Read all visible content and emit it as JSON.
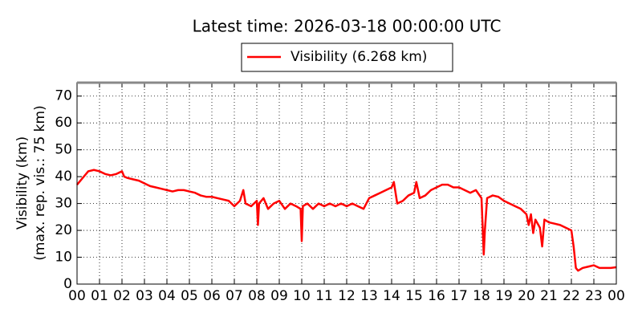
{
  "chart_data": {
    "type": "line",
    "title": "Latest time: 2026-03-18 00:00:00 UTC",
    "ylabel": [
      "Visibility (km)",
      "(max. rep. vis.: 75 km)"
    ],
    "xlim": [
      0,
      24
    ],
    "ylim": [
      0,
      75
    ],
    "yticks": [
      0,
      10,
      20,
      30,
      40,
      50,
      60,
      70
    ],
    "xticks": [
      {
        "value": 0,
        "label": "00"
      },
      {
        "value": 1,
        "label": "01"
      },
      {
        "value": 2,
        "label": "02"
      },
      {
        "value": 3,
        "label": "03"
      },
      {
        "value": 4,
        "label": "04"
      },
      {
        "value": 5,
        "label": "05"
      },
      {
        "value": 6,
        "label": "06"
      },
      {
        "value": 7,
        "label": "07"
      },
      {
        "value": 8,
        "label": "08"
      },
      {
        "value": 9,
        "label": "09"
      },
      10,
      11,
      12,
      13,
      14,
      15,
      16,
      17,
      18,
      19,
      20,
      21,
      22,
      23,
      {
        "value": 24,
        "label": "00"
      }
    ],
    "grid": true,
    "x": [
      0,
      0.1,
      0.3,
      0.5,
      0.75,
      1,
      1.25,
      1.5,
      1.75,
      2,
      2.1,
      2.25,
      2.5,
      2.75,
      3,
      3.25,
      3.5,
      3.75,
      4,
      4.25,
      4.5,
      4.75,
      5,
      5.25,
      5.5,
      5.75,
      6,
      6.25,
      6.5,
      6.75,
      7,
      7.25,
      7.4,
      7.5,
      7.75,
      8,
      8.05,
      8.1,
      8.3,
      8.5,
      8.75,
      9,
      9.25,
      9.5,
      9.75,
      9.95,
      10,
      10.05,
      10.25,
      10.5,
      10.75,
      11,
      11.25,
      11.5,
      11.75,
      12,
      12.25,
      12.5,
      12.75,
      13,
      13.25,
      13.5,
      13.75,
      14,
      14.1,
      14.25,
      14.5,
      14.75,
      15,
      15.1,
      15.25,
      15.5,
      15.75,
      16,
      16.25,
      16.5,
      16.75,
      17,
      17.25,
      17.5,
      17.75,
      18,
      18.1,
      18.15,
      18.25,
      18.5,
      18.75,
      19,
      19.25,
      19.5,
      19.75,
      20,
      20.1,
      20.2,
      20.3,
      20.4,
      20.6,
      20.7,
      20.8,
      21,
      21.25,
      21.5,
      21.75,
      22,
      22.1,
      22.2,
      22.3,
      22.5,
      22.75,
      23,
      23.25,
      23.5,
      23.75,
      24
    ],
    "series": [
      {
        "name": "Visibility (6.268 km)",
        "color": "#ff0000",
        "values": [
          37,
          38,
          40,
          42,
          42.5,
          42,
          41,
          40.5,
          41,
          42,
          40,
          39.5,
          39,
          38.5,
          37.5,
          36.5,
          36,
          35.5,
          35,
          34.5,
          35,
          35,
          34.5,
          34,
          33,
          32.5,
          32.5,
          32,
          31.5,
          31,
          29,
          31,
          35,
          30,
          29,
          31,
          22,
          30,
          32,
          28,
          30,
          31,
          28,
          30,
          29,
          28,
          16,
          29,
          30,
          28,
          30,
          29,
          30,
          29,
          30,
          29,
          30,
          29,
          28,
          32,
          33,
          34,
          35,
          36,
          38,
          30,
          31,
          33,
          34,
          38,
          32,
          33,
          35,
          36,
          37,
          37,
          36,
          36,
          35,
          34,
          35,
          32,
          11,
          20,
          32,
          33,
          32.5,
          31,
          30,
          29,
          28,
          26,
          22,
          26,
          19,
          24,
          21,
          14,
          24,
          23,
          22.5,
          22,
          21,
          20,
          14,
          6,
          5,
          6,
          6.5,
          7,
          6,
          6,
          6,
          6.268
        ]
      }
    ]
  }
}
